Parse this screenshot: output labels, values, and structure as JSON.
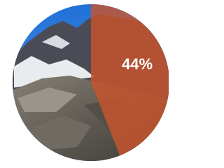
{
  "chart_data": {
    "type": "pie",
    "values": [
      44
    ],
    "value_labels": [
      "44%"
    ],
    "color": "#c9542c",
    "ylim": [
      0,
      100
    ]
  }
}
